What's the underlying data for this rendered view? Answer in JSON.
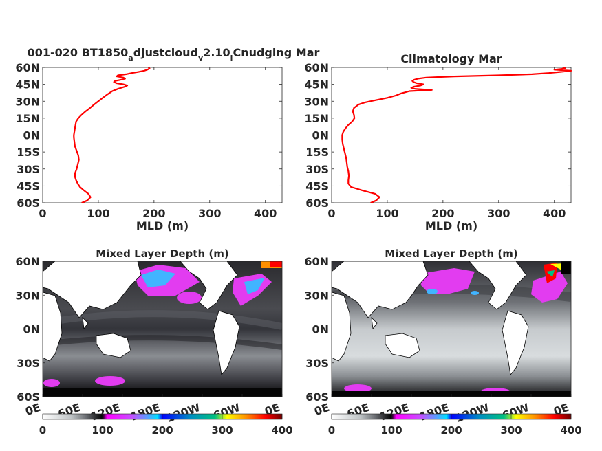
{
  "chart_data": [
    {
      "type": "line",
      "title_parts": [
        "001-020 BT1850",
        "a",
        "djustcloud",
        "v",
        "2.10",
        "l",
        "Cnudging Mar"
      ],
      "xlabel": "MLD (m)",
      "ylabel": "",
      "xlim": [
        0,
        430
      ],
      "ylim": [
        -60,
        60
      ],
      "xticks": [
        "0",
        "100",
        "200",
        "300",
        "400"
      ],
      "yticks": [
        "60S",
        "45S",
        "30S",
        "15S",
        "0N",
        "15N",
        "30N",
        "45N",
        "60N"
      ],
      "series": [
        {
          "color": "#ff0000",
          "lat": [
            -60,
            -58,
            -55,
            -52,
            -49,
            -46,
            -43,
            -40,
            -37,
            -34,
            -30,
            -26,
            -22,
            -18,
            -14,
            -10,
            -6,
            -2,
            0,
            3,
            6,
            9,
            12,
            15,
            18,
            21,
            24,
            27,
            30,
            33,
            36,
            39,
            41,
            43,
            44,
            45,
            46,
            47,
            48,
            49,
            50,
            51,
            52,
            53,
            54,
            55,
            56,
            57,
            58,
            59,
            60
          ],
          "mld": [
            70,
            80,
            86,
            82,
            74,
            67,
            63,
            60,
            58,
            58,
            61,
            63,
            65,
            64,
            61,
            58,
            57,
            56,
            56,
            57,
            58,
            59,
            60,
            64,
            70,
            77,
            85,
            92,
            100,
            108,
            116,
            125,
            135,
            148,
            152,
            145,
            133,
            128,
            130,
            140,
            148,
            145,
            133,
            135,
            150,
            160,
            172,
            182,
            188,
            192,
            190
          ]
        }
      ]
    },
    {
      "type": "line",
      "title": "Climatology Mar",
      "xlabel": "MLD (m)",
      "ylabel": "",
      "xlim": [
        0,
        430
      ],
      "ylim": [
        -60,
        60
      ],
      "xticks": [
        "0",
        "100",
        "200",
        "300",
        "400"
      ],
      "yticks": [
        "60S",
        "45S",
        "30S",
        "15S",
        "0N",
        "15N",
        "30N",
        "45N",
        "60N"
      ],
      "series": [
        {
          "color": "#ff0000",
          "lat": [
            -60,
            -58,
            -55,
            -52,
            -49,
            -46,
            -43,
            -40,
            -36,
            -32,
            -28,
            -24,
            -20,
            -16,
            -12,
            -8,
            -4,
            0,
            3,
            6,
            9,
            12,
            15,
            18,
            21,
            24,
            27,
            29,
            31,
            33,
            35,
            37,
            39,
            40,
            41,
            42,
            43,
            44,
            45,
            46,
            47,
            48,
            49,
            50,
            51,
            52,
            53,
            54,
            55,
            56,
            57,
            58,
            59,
            60
          ],
          "mld": [
            70,
            80,
            86,
            78,
            55,
            35,
            30,
            30,
            31,
            30,
            28,
            27,
            26,
            24,
            22,
            20,
            19,
            19,
            21,
            25,
            30,
            37,
            41,
            40,
            38,
            40,
            48,
            60,
            80,
            100,
            115,
            125,
            140,
            180,
            150,
            143,
            148,
            160,
            165,
            153,
            147,
            145,
            148,
            155,
            170,
            220,
            300,
            360,
            390,
            410,
            430,
            400,
            420,
            415
          ]
        }
      ]
    },
    {
      "type": "heatmap",
      "title": "Mixed Layer Depth (m)",
      "xticks": [
        "0E",
        "60E",
        "120E",
        "180E",
        "120W",
        "60W",
        "0E"
      ],
      "yticks": [
        "60S",
        "30S",
        "0N",
        "30N",
        "60N"
      ],
      "colorbar": {
        "ticks": [
          "0",
          "100",
          "200",
          "300",
          "400"
        ],
        "range": [
          0,
          400
        ]
      }
    },
    {
      "type": "heatmap",
      "title": "Mixed Layer Depth (m)",
      "xticks": [
        "0E",
        "60E",
        "120E",
        "180E",
        "120W",
        "60W",
        "0E"
      ],
      "yticks": [
        "60S",
        "30S",
        "0N",
        "30N",
        "60N"
      ],
      "colorbar": {
        "ticks": [
          "0",
          "100",
          "200",
          "300",
          "400"
        ],
        "range": [
          0,
          400
        ]
      }
    }
  ],
  "colors": {
    "line": "#ff0000",
    "axis": "#262626"
  }
}
